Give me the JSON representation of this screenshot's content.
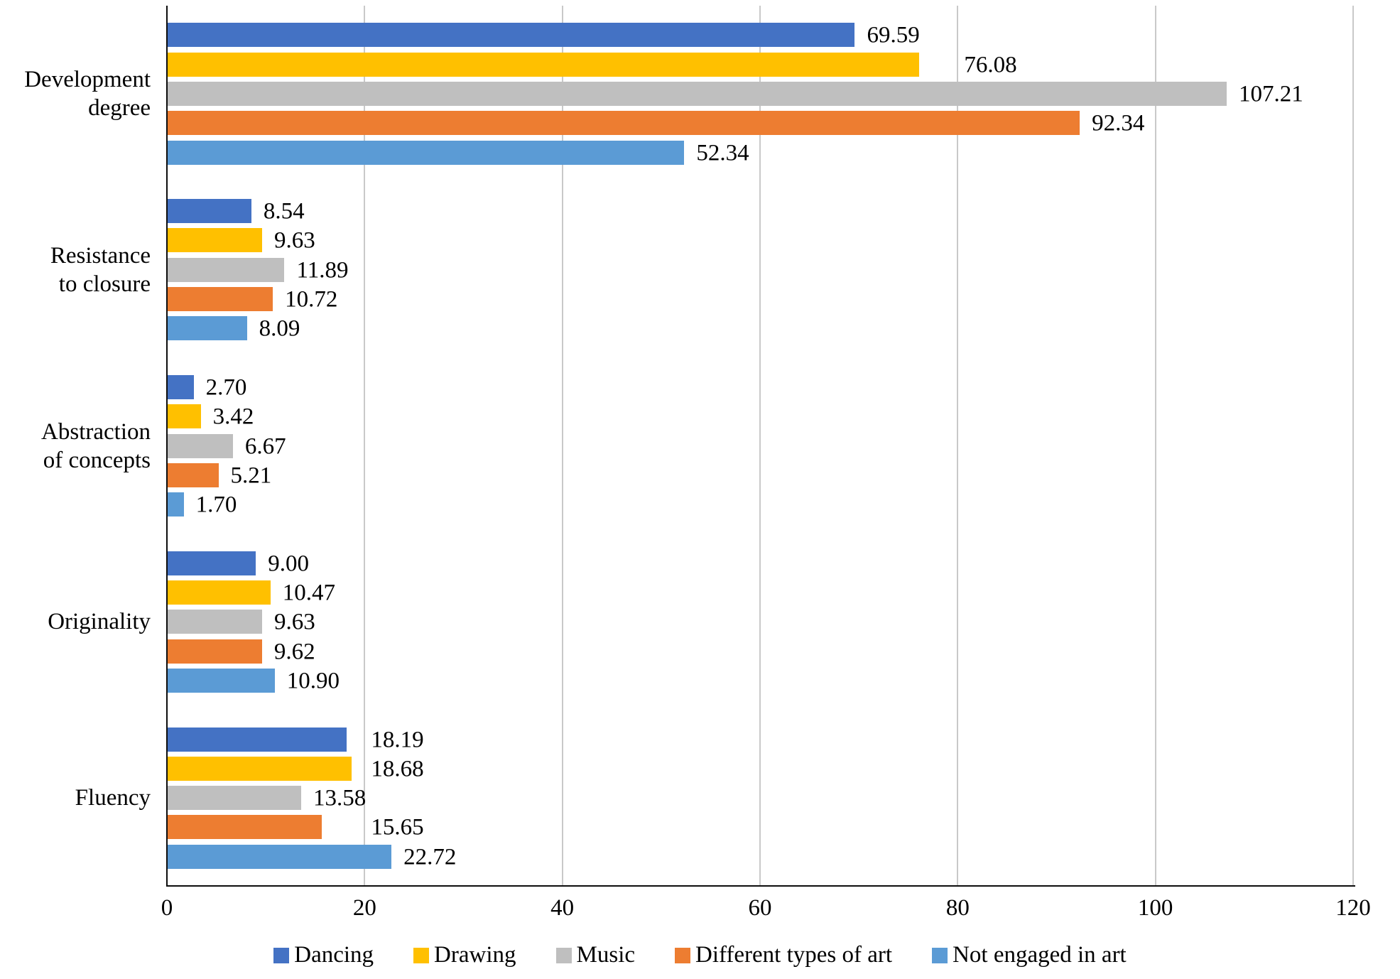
{
  "chart_data": {
    "type": "bar",
    "orientation": "horizontal",
    "title": "",
    "xlabel": "",
    "ylabel": "",
    "categories": [
      "Development degree",
      "Resistance to closure",
      "Abstraction of concepts",
      "Originality",
      "Fluency"
    ],
    "category_lines": [
      [
        "Development",
        "degree"
      ],
      [
        "Resistance",
        "to closure"
      ],
      [
        "Abstraction",
        "of concepts"
      ],
      [
        "Originality"
      ],
      [
        "Fluency"
      ]
    ],
    "series": [
      {
        "name": "Dancing",
        "color": "#4472C4",
        "values": [
          69.59,
          8.54,
          2.7,
          9.0,
          18.19
        ],
        "labels": [
          "69.59",
          "8.54",
          "2.70",
          "9.00",
          "18.19"
        ]
      },
      {
        "name": "Drawing",
        "color": "#FFC000",
        "values": [
          76.08,
          9.63,
          3.42,
          10.47,
          18.68
        ],
        "labels": [
          "76.08",
          "9.63",
          "3.42",
          "10.47",
          "18.68"
        ]
      },
      {
        "name": "Music",
        "color": "#BFBFBF",
        "values": [
          107.21,
          11.89,
          6.67,
          9.63,
          13.58
        ],
        "labels": [
          "107.21",
          "11.89",
          "6.67",
          "9.63",
          "13.58"
        ]
      },
      {
        "name": "Different types of art",
        "color": "#ED7D31",
        "values": [
          92.34,
          10.72,
          5.21,
          9.62,
          15.65
        ],
        "labels": [
          "92.34",
          "10.72",
          "5.21",
          "9.62",
          "15.65"
        ]
      },
      {
        "name": "Not engaged in art",
        "color": "#5B9BD5",
        "values": [
          52.34,
          8.09,
          1.7,
          10.9,
          22.72
        ],
        "labels": [
          "52.34",
          "8.09",
          "1.70",
          "10.90",
          "22.72"
        ]
      }
    ],
    "xlim": [
      0,
      120
    ],
    "x_ticks": [
      "0",
      "20",
      "40",
      "60",
      "80",
      "100",
      "120"
    ],
    "x_tick_values": [
      0,
      20,
      40,
      60,
      80,
      100,
      120
    ],
    "grid": true,
    "legend_position": "bottom",
    "colors": {
      "axis": "#0d0d0d",
      "gridline": "#c9c9c9",
      "background": "#ffffff",
      "text": "#000000"
    }
  }
}
